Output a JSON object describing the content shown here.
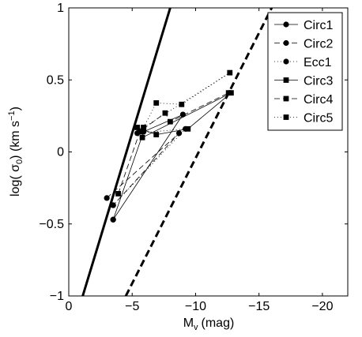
{
  "chart_data": {
    "type": "line",
    "xlabel": "M",
    "xlabel_sub": "v",
    "xlabel_units": "(mag)",
    "ylabel": "log( σ",
    "ylabel_sub": "0",
    "ylabel_units": ") (km s",
    "ylabel_sup": "−1",
    "ylabel_close": ")",
    "xlim": [
      0,
      -22
    ],
    "ylim": [
      -1,
      1
    ],
    "x_direction": "reversed",
    "xticks": [
      0,
      -5,
      -10,
      -15,
      -20
    ],
    "xtick_labels": [
      "0",
      "−5",
      "−10",
      "−15",
      "−20"
    ],
    "yticks": [
      -1,
      -0.5,
      0,
      0.5,
      1
    ],
    "ytick_labels": [
      "−1",
      "−0.5",
      "0",
      "0.5",
      "1"
    ],
    "grid": false,
    "legend_position": "top-right",
    "reference_lines": [
      {
        "style": "solid-thick",
        "x": [
          -1.1,
          -8.0
        ],
        "y": [
          -1.0,
          1.0
        ]
      },
      {
        "style": "dashed-thick",
        "x": [
          -4.5,
          -16.0
        ],
        "y": [
          -1.0,
          1.0
        ]
      }
    ],
    "series": [
      {
        "name": "Circ1",
        "marker": "circle",
        "line": "solid",
        "x": [
          -3.5,
          -9.0,
          -5.9,
          -3.5
        ],
        "y": [
          -0.47,
          0.26,
          0.14,
          -0.47
        ]
      },
      {
        "name": "Circ2",
        "marker": "circle",
        "line": "dashed",
        "x": [
          -3.0,
          -8.7,
          -3.5
        ],
        "y": [
          -0.32,
          0.13,
          -0.37
        ]
      },
      {
        "name": "Ecc1",
        "marker": "circle",
        "line": "dotted",
        "x": [
          -3.5,
          -9.2,
          -5.4
        ],
        "y": [
          -0.37,
          0.16,
          0.13
        ]
      },
      {
        "name": "Circ3",
        "marker": "square",
        "line": "solid",
        "x": [
          -5.4,
          -6.9,
          -9.4,
          -12.8,
          -5.8
        ],
        "y": [
          0.17,
          0.12,
          0.16,
          0.41,
          0.1
        ]
      },
      {
        "name": "Circ4",
        "marker": "square",
        "line": "dashed",
        "x": [
          -3.9,
          -5.6,
          -7.6,
          -8.0,
          -12.6
        ],
        "y": [
          -0.29,
          0.14,
          0.27,
          0.21,
          0.41
        ]
      },
      {
        "name": "Circ5",
        "marker": "square",
        "line": "dotted",
        "x": [
          -5.9,
          -6.9,
          -8.9,
          -12.7,
          -5.9
        ],
        "y": [
          0.17,
          0.34,
          0.33,
          0.55,
          0.17
        ]
      }
    ]
  }
}
